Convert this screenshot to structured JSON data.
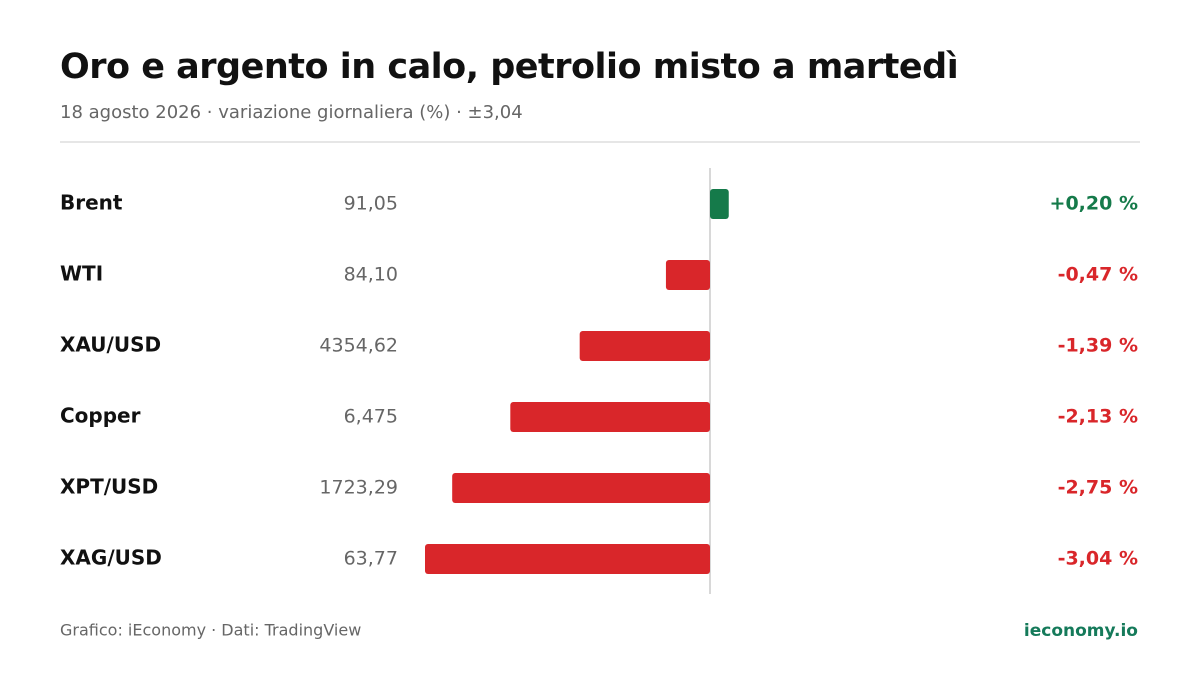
{
  "chart_data": {
    "type": "diverging-bar",
    "title": "Oro e argento in calo, petrolio misto a martedì",
    "subtitle": "18 agosto 2026 · variazione giornaliera (%) · ±3,04",
    "categories": [
      "Brent",
      "WTI",
      "XAU/USD",
      "Copper",
      "XPT/USD",
      "XAG/USD"
    ],
    "prices": [
      "91,05",
      "84,10",
      "4354,62",
      "6,475",
      "1723,29",
      "63,77"
    ],
    "values": [
      0.2,
      -0.47,
      -1.39,
      -2.13,
      -2.75,
      -3.04
    ],
    "value_labels": [
      "+0,20 %",
      "-0,47 %",
      "-1,39 %",
      "-2,13 %",
      "-2,75 %",
      "-3,04 %"
    ],
    "xlim": [
      -3.04,
      3.04
    ],
    "positive_color": "#157a4a",
    "negative_color": "#d9262a",
    "source": "Grafico: iEconomy · Dati: TradingView",
    "brand": "ieconomy.io"
  }
}
